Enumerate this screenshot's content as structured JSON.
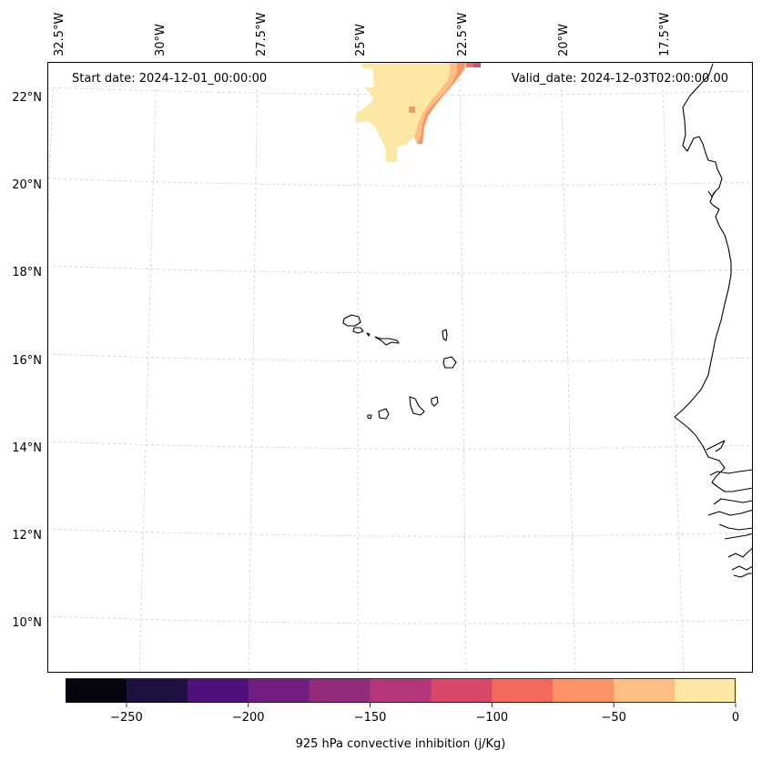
{
  "map": {
    "projection": "lambert-conformal",
    "lon_labels": [
      "32.5°W",
      "30°W",
      "27.5°W",
      "25°W",
      "22.5°W",
      "20°W",
      "17.5°W"
    ],
    "lat_labels": [
      "22°N",
      "20°N",
      "18°N",
      "16°N",
      "14°N",
      "12°N",
      "10°N"
    ],
    "start_date_label": "Start date: 2024-12-01_00:00:00",
    "valid_date_label": "Valid_date: 2024-12-03T02:00:00.00",
    "gridline_color": "#cccccc",
    "coastline_color": "#000000",
    "field_colors_shown": [
      "#fde7a4",
      "#febe84",
      "#fb9466",
      "#f26f5e",
      "#de4a68"
    ]
  },
  "colorbar": {
    "label": "925 hPa convective inhibition (j/Kg)",
    "colormap": "magma",
    "range": [
      -275,
      0
    ],
    "tick_labels": [
      "−250",
      "−200",
      "−150",
      "−100",
      "−50",
      "0"
    ],
    "colors": [
      "#05040f",
      "#1e1141",
      "#4f107b",
      "#711e81",
      "#932b7d",
      "#b5367a",
      "#da4869",
      "#f3695c",
      "#fc9366",
      "#febe84",
      "#fde7a4"
    ]
  }
}
